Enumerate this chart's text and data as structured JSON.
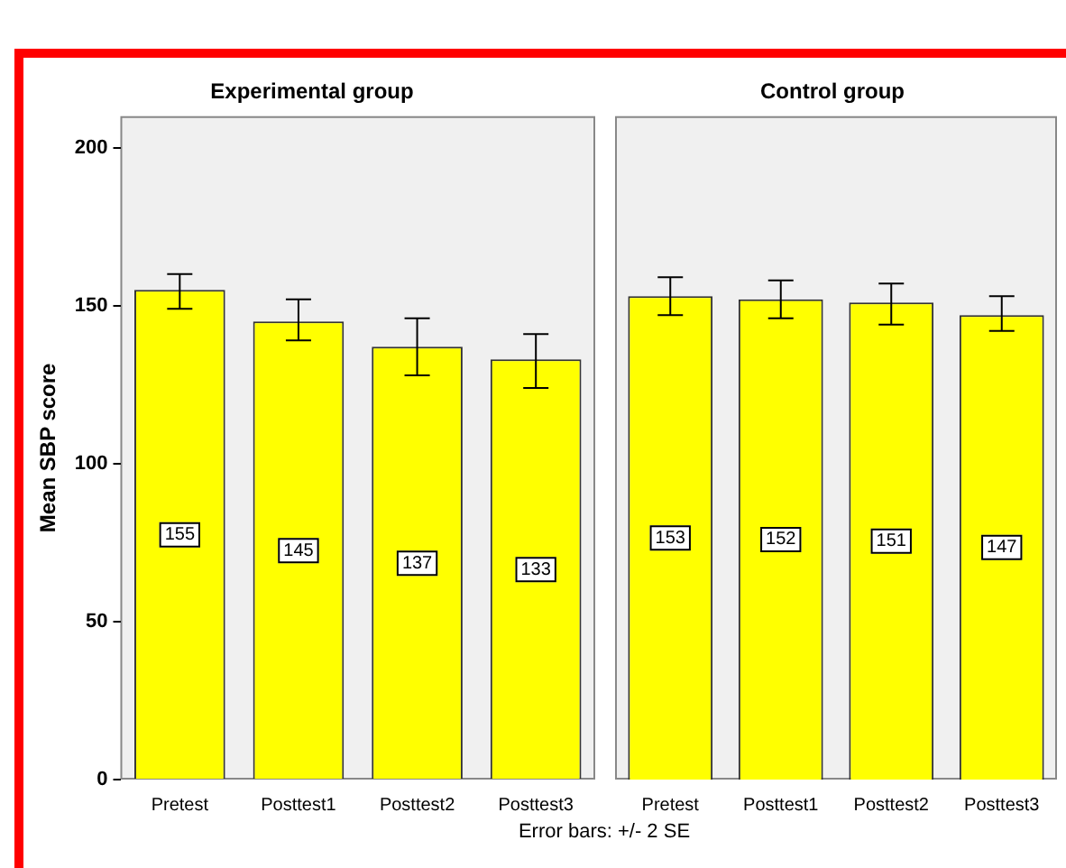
{
  "chart_data": [
    {
      "type": "bar",
      "title": "Experimental group",
      "ylabel": "Mean SBP score",
      "categories": [
        "Pretest",
        "Posttest1",
        "Posttest2",
        "Posttest3"
      ],
      "values": [
        155,
        145,
        137,
        133
      ],
      "color": "#ffff00",
      "errors": [
        [
          149,
          160
        ],
        [
          139,
          152
        ],
        [
          128,
          146
        ],
        [
          124,
          141
        ]
      ],
      "ylim": [
        0,
        210
      ],
      "yticks": [
        0,
        50,
        100,
        150,
        200
      ],
      "data_labels": true,
      "annotations": [
        "Error bars: +/- 2 SE"
      ]
    },
    {
      "type": "bar",
      "title": "Control group",
      "categories": [
        "Pretest",
        "Posttest1",
        "Posttest2",
        "Posttest3"
      ],
      "values": [
        153,
        152,
        151,
        147
      ],
      "color": "#ffff00",
      "errors": [
        [
          147,
          159
        ],
        [
          146,
          158
        ],
        [
          144,
          157
        ],
        [
          142,
          153
        ]
      ],
      "ylim": [
        0,
        210
      ],
      "data_labels": true,
      "tick_labels": "x"
    }
  ]
}
